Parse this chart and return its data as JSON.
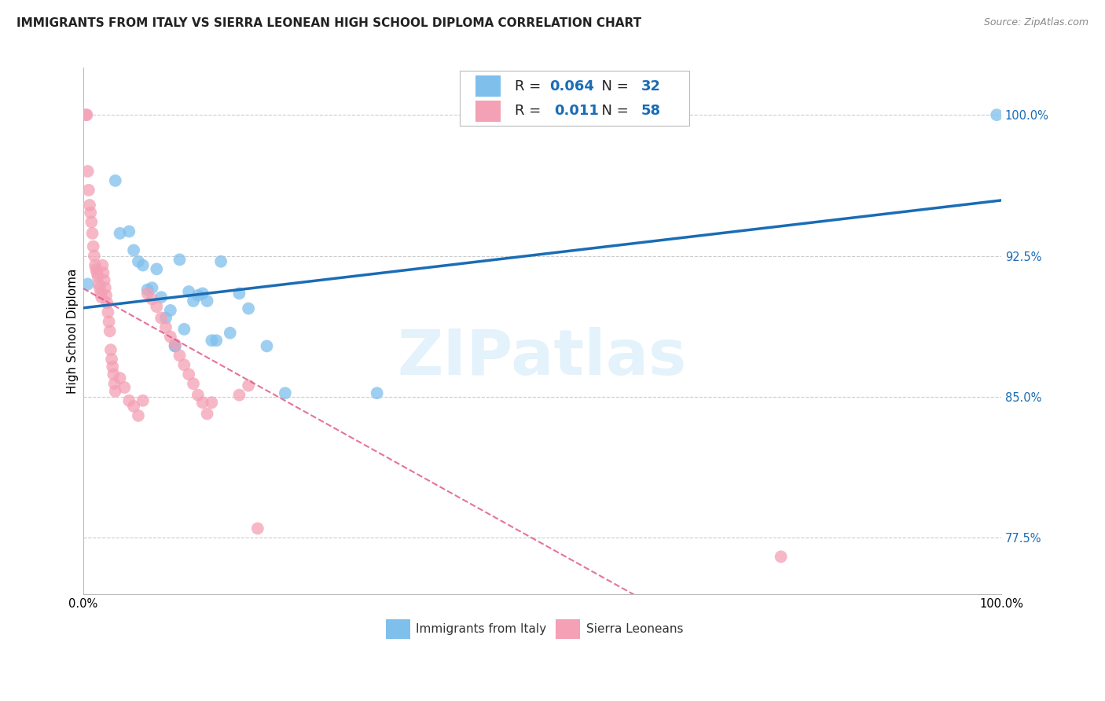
{
  "title": "IMMIGRANTS FROM ITALY VS SIERRA LEONEAN HIGH SCHOOL DIPLOMA CORRELATION CHART",
  "source": "Source: ZipAtlas.com",
  "ylabel": "High School Diploma",
  "watermark": "ZIPatlas",
  "legend_blue_R": "0.064",
  "legend_blue_N": "32",
  "legend_pink_R": "0.011",
  "legend_pink_N": "58",
  "legend_label_blue": "Immigrants from Italy",
  "legend_label_pink": "Sierra Leoneans",
  "blue_color": "#7fbfec",
  "pink_color": "#f4a0b5",
  "trend_blue_color": "#1a6cb5",
  "trend_pink_color": "#e05080",
  "tick_color": "#1a6cb5",
  "background_color": "#ffffff",
  "grid_color": "#cccccc",
  "xlim": [
    0.0,
    1.0
  ],
  "ylim": [
    0.745,
    1.025
  ],
  "yticks": [
    0.775,
    0.85,
    0.925,
    1.0
  ],
  "ytick_labels": [
    "77.5%",
    "85.0%",
    "92.5%",
    "100.0%"
  ],
  "xtick_left_label": "0.0%",
  "xtick_right_label": "100.0%",
  "blue_x": [
    0.005,
    0.035,
    0.04,
    0.05,
    0.055,
    0.06,
    0.065,
    0.07,
    0.075,
    0.08,
    0.085,
    0.09,
    0.095,
    0.1,
    0.1,
    0.105,
    0.11,
    0.115,
    0.12,
    0.125,
    0.13,
    0.135,
    0.14,
    0.145,
    0.15,
    0.16,
    0.17,
    0.18,
    0.2,
    0.22,
    0.32,
    0.995
  ],
  "blue_y": [
    0.91,
    0.965,
    0.937,
    0.938,
    0.928,
    0.922,
    0.92,
    0.907,
    0.908,
    0.918,
    0.903,
    0.892,
    0.896,
    0.877,
    0.877,
    0.923,
    0.886,
    0.906,
    0.901,
    0.904,
    0.905,
    0.901,
    0.88,
    0.88,
    0.922,
    0.884,
    0.905,
    0.897,
    0.877,
    0.852,
    0.852,
    1.0
  ],
  "pink_x": [
    0.003,
    0.004,
    0.005,
    0.006,
    0.007,
    0.008,
    0.009,
    0.01,
    0.011,
    0.012,
    0.013,
    0.014,
    0.015,
    0.016,
    0.017,
    0.018,
    0.019,
    0.02,
    0.021,
    0.022,
    0.023,
    0.024,
    0.025,
    0.026,
    0.027,
    0.028,
    0.029,
    0.03,
    0.031,
    0.032,
    0.033,
    0.034,
    0.035,
    0.04,
    0.045,
    0.05,
    0.055,
    0.06,
    0.065,
    0.07,
    0.075,
    0.08,
    0.085,
    0.09,
    0.095,
    0.1,
    0.105,
    0.11,
    0.115,
    0.12,
    0.125,
    0.13,
    0.135,
    0.14,
    0.17,
    0.18,
    0.19,
    0.76
  ],
  "pink_y": [
    1.0,
    1.0,
    0.97,
    0.96,
    0.952,
    0.948,
    0.943,
    0.937,
    0.93,
    0.925,
    0.92,
    0.918,
    0.916,
    0.914,
    0.91,
    0.908,
    0.905,
    0.903,
    0.92,
    0.916,
    0.912,
    0.908,
    0.904,
    0.9,
    0.895,
    0.89,
    0.885,
    0.875,
    0.87,
    0.866,
    0.862,
    0.857,
    0.853,
    0.86,
    0.855,
    0.848,
    0.845,
    0.84,
    0.848,
    0.905,
    0.902,
    0.898,
    0.892,
    0.887,
    0.882,
    0.878,
    0.872,
    0.867,
    0.862,
    0.857,
    0.851,
    0.847,
    0.841,
    0.847,
    0.851,
    0.856,
    0.78,
    0.765
  ],
  "title_fontsize": 11,
  "axis_label_fontsize": 11,
  "tick_fontsize": 10.5,
  "legend_fontsize": 13
}
